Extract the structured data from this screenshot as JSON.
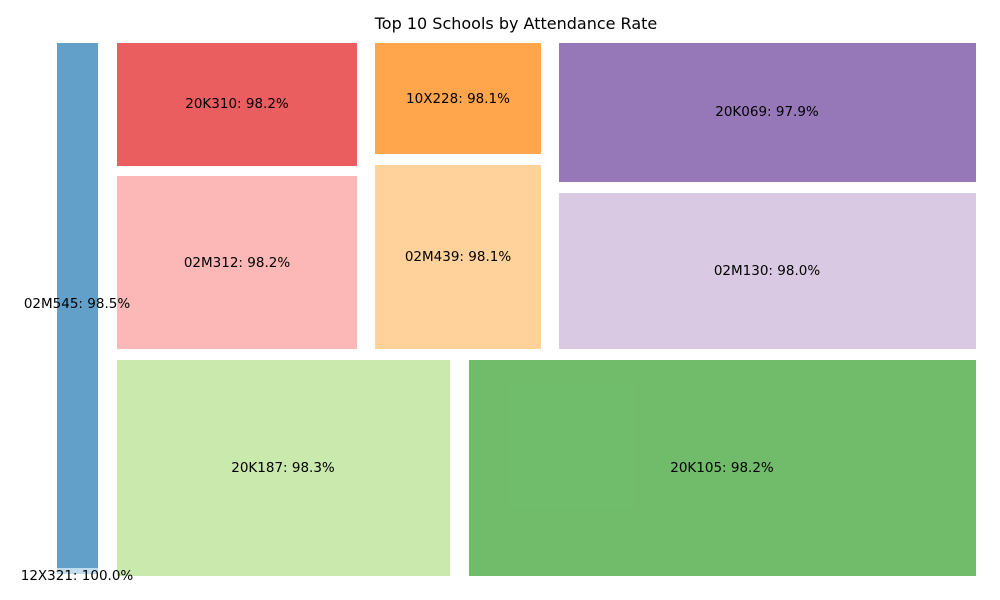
{
  "chart_data": {
    "type": "treemap",
    "title": "Top 10 Schools by Attendance Rate",
    "value_unit": "%",
    "items": [
      {
        "label": "12X321",
        "value": 100.0,
        "color": "#a6cee3"
      },
      {
        "label": "02M545",
        "value": 98.5,
        "color": "#1f78b4"
      },
      {
        "label": "20K187",
        "value": 98.3,
        "color": "#b2df8a"
      },
      {
        "label": "20K105",
        "value": 98.2,
        "color": "#33a02c"
      },
      {
        "label": "02M312",
        "value": 98.2,
        "color": "#fb9a99"
      },
      {
        "label": "20K310",
        "value": 98.2,
        "color": "#e31a1c"
      },
      {
        "label": "02M439",
        "value": 98.1,
        "color": "#fdbf6f"
      },
      {
        "label": "10X228",
        "value": 98.1,
        "color": "#ff7f00"
      },
      {
        "label": "02M130",
        "value": 98.0,
        "color": "#cab2d6"
      },
      {
        "label": "20K069",
        "value": 97.9,
        "color": "#6a3d9a"
      }
    ]
  }
}
